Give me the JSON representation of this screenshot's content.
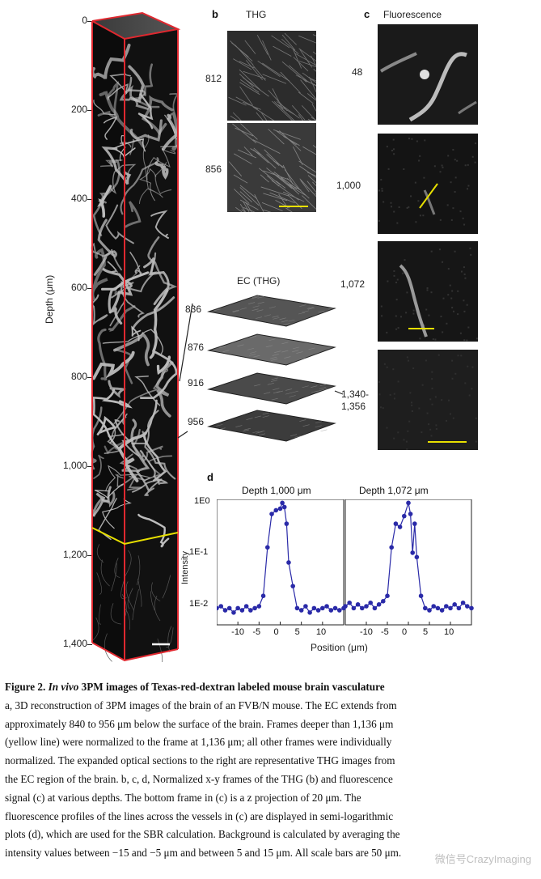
{
  "panel_a": {
    "ylabel": "Depth (μm)",
    "ticks": [
      "0",
      "200",
      "400",
      "600",
      "800",
      "1,000",
      "1,200",
      "1,400"
    ],
    "yellow_line_depth_um": 1136,
    "accent_red": "#e0282f",
    "accent_yellow": "#e8e000"
  },
  "panel_b": {
    "letter": "b",
    "title": "THG",
    "depths": [
      "812",
      "856"
    ]
  },
  "panel_c": {
    "letter": "c",
    "title": "Fluorescence",
    "depths": [
      "48",
      "1,000",
      "1,072",
      "1,340-\n1,356"
    ]
  },
  "panel_ec": {
    "title": "EC (THG)",
    "depths": [
      "836",
      "876",
      "916",
      "956"
    ]
  },
  "panel_d": {
    "letter": "d",
    "ylabel": "Intensity",
    "xlabel": "Position (μm)",
    "y_ticks": [
      "1E0",
      "1E-1",
      "1E-2"
    ],
    "x_ticks": [
      "-10",
      "-5",
      "0",
      "5",
      "10"
    ]
  },
  "chart_data": [
    {
      "type": "line",
      "title": "Depth 1,000 μm",
      "xlabel": "Position (μm)",
      "ylabel": "Intensity",
      "yscale": "log",
      "ylim": [
        0.006,
        1.1
      ],
      "xlim": [
        -15,
        15
      ],
      "x": [
        -15,
        -14,
        -13,
        -12,
        -11,
        -10,
        -9,
        -8,
        -7,
        -6,
        -5,
        -4,
        -3,
        -2,
        -1,
        0,
        0.5,
        1,
        1.5,
        2,
        3,
        4,
        5,
        6,
        7,
        8,
        9,
        10,
        11,
        12,
        13,
        14,
        15
      ],
      "values": [
        0.012,
        0.013,
        0.011,
        0.012,
        0.01,
        0.012,
        0.011,
        0.013,
        0.011,
        0.012,
        0.013,
        0.02,
        0.15,
        0.6,
        0.7,
        0.75,
        0.95,
        0.8,
        0.4,
        0.08,
        0.03,
        0.012,
        0.011,
        0.013,
        0.01,
        0.012,
        0.011,
        0.012,
        0.013,
        0.011,
        0.012,
        0.011,
        0.012
      ],
      "color": "#2a2aa8"
    },
    {
      "type": "line",
      "title": "Depth 1,072 μm",
      "xlabel": "Position (μm)",
      "yscale": "log",
      "ylim": [
        0.006,
        1.1
      ],
      "xlim": [
        -15,
        15
      ],
      "x": [
        -15,
        -14,
        -13,
        -12,
        -11,
        -10,
        -9,
        -8,
        -7,
        -6,
        -5,
        -4,
        -3,
        -2,
        -1,
        0,
        0.5,
        1,
        1.5,
        2,
        3,
        4,
        5,
        6,
        7,
        8,
        9,
        10,
        11,
        12,
        13,
        14,
        15
      ],
      "values": [
        0.013,
        0.015,
        0.012,
        0.014,
        0.012,
        0.013,
        0.015,
        0.012,
        0.014,
        0.016,
        0.02,
        0.15,
        0.4,
        0.35,
        0.55,
        0.95,
        0.6,
        0.12,
        0.4,
        0.1,
        0.02,
        0.012,
        0.011,
        0.013,
        0.012,
        0.011,
        0.013,
        0.012,
        0.014,
        0.012,
        0.015,
        0.013,
        0.012
      ],
      "color": "#2a2aa8"
    }
  ],
  "caption": {
    "title_prefix": "Figure 2. ",
    "title_italic": "In vivo",
    "title_rest": " 3PM images of Texas-red-dextran labeled mouse brain vasculature",
    "lines": [
      "a, 3D reconstruction of 3PM images of the brain of an FVB/N mouse. The EC extends from",
      "approximately 840 to 956 μm below the surface of the brain. Frames deeper than 1,136 μm",
      "(yellow line) were normalized to the frame at 1,136 μm; all other frames were individually",
      "normalized. The expanded optical sections to the right are representative THG images from",
      "the EC region of the brain. b, c, d, Normalized x-y frames of the THG (b) and fluorescence",
      "signal (c) at various depths. The bottom frame in (c) is a z projection of 20 μm. The",
      "fluorescence profiles of the lines across the vessels in (c) are displayed in semi-logarithmic",
      "plots (d), which are used for the SBR calculation. Background is calculated by averaging the",
      "intensity values between −15 and −5 μm and between 5 and 15 μm. All scale bars are 50 μm."
    ],
    "watermark": "微信号CrazyImaging"
  }
}
